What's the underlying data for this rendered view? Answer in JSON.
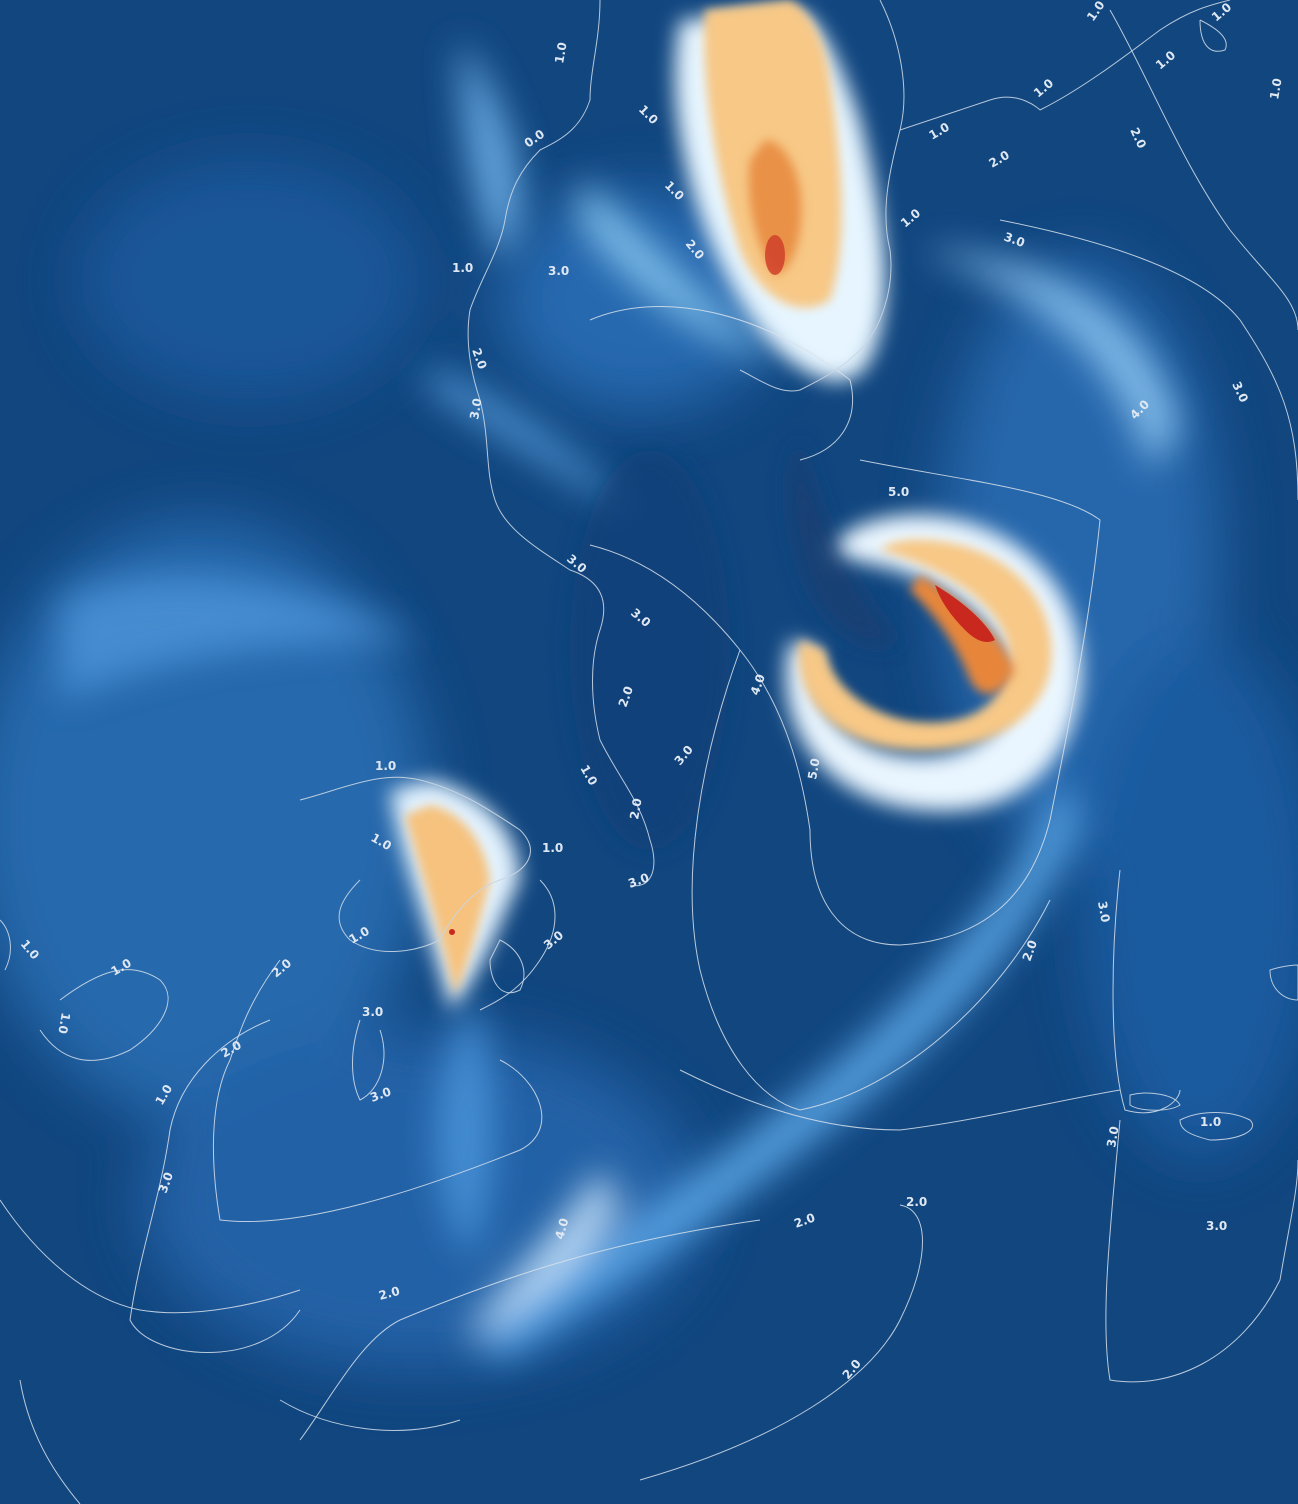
{
  "map": {
    "colors": {
      "background": "#11467f",
      "low": "#1b5aa0",
      "mid": "#4d9be0",
      "bright": "#eaf6ff",
      "warm": "#f6c781",
      "hot": "#e8883a",
      "peak": "#c8281e",
      "contour": "#d8e2ec"
    },
    "contour_labels": [
      "1.0",
      "1.0",
      "1.0",
      "1.0",
      "1.0",
      "1.0",
      "1.0",
      "1.0",
      "0.0",
      "1.0",
      "2.0",
      "2.0",
      "1.0",
      "3.0",
      "1.0",
      "3.0",
      "4.0",
      "3.0",
      "2.0",
      "3.0",
      "2.0",
      "3.0",
      "3.0",
      "5.0",
      "4.0",
      "5.0",
      "3.0",
      "2.0",
      "2.0",
      "1.0",
      "1.0",
      "1.0",
      "3.0",
      "1.0",
      "1.0",
      "1.0",
      "1.0",
      "2.0",
      "3.0",
      "3.0",
      "3.0",
      "3.0",
      "2.0",
      "1.0",
      "2.0",
      "3.0",
      "4.0",
      "2.0",
      "2.0",
      "2.0",
      "2.0",
      "3.0",
      "1.0",
      "3.0",
      "1.0"
    ]
  }
}
